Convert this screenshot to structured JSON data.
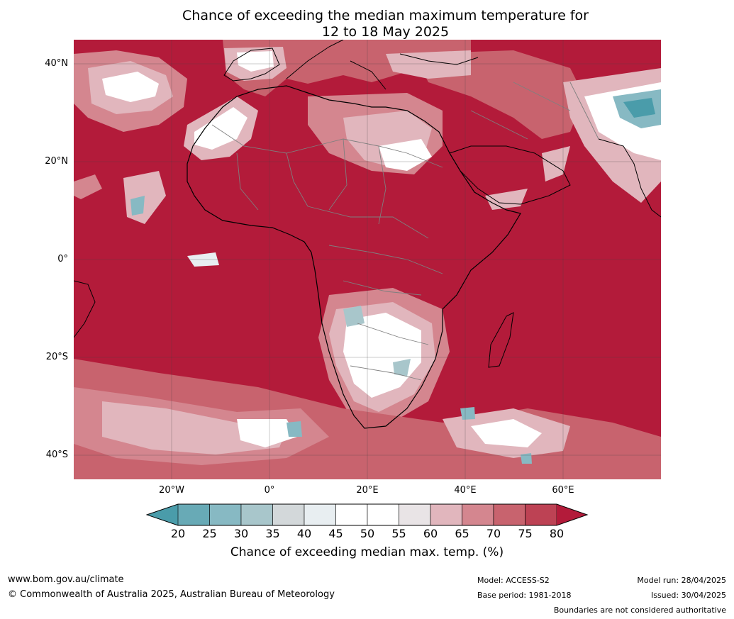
{
  "title_line1": "Chance of exceeding the median maximum temperature for",
  "title_line2": "12 to 18 May 2025",
  "map": {
    "ocean_color": "#b31b3a",
    "lat_labels": [
      "40°N",
      "20°N",
      "0°",
      "20°S",
      "40°S"
    ],
    "lon_labels": [
      "20°W",
      "0°",
      "20°E",
      "40°E",
      "60°E"
    ]
  },
  "colorbar": {
    "label": "Chance of exceeding median max. temp. (%)",
    "ticks": [
      "20",
      "25",
      "30",
      "35",
      "40",
      "45",
      "50",
      "55",
      "60",
      "65",
      "70",
      "75",
      "80"
    ],
    "colors": [
      "#4a9caa",
      "#68aab6",
      "#87b9c3",
      "#a8c6cb",
      "#d3d8da",
      "#e8eef1",
      "#ffffff",
      "#ffffff",
      "#e9e4e6",
      "#e1b6bd",
      "#d4868f",
      "#c8636e",
      "#bd4254",
      "#b31b3a"
    ]
  },
  "footer": {
    "website": "www.bom.gov.au/climate",
    "copyright": "© Commonwealth of Australia 2025, Australian Bureau of Meteorology",
    "model": "Model: ACCESS-S2",
    "base_period": "Base period: 1981-2018",
    "model_run": "Model run: 28/04/2025",
    "issued": "Issued: 30/04/2025",
    "disclaimer": "Boundaries are not considered authoritative"
  }
}
